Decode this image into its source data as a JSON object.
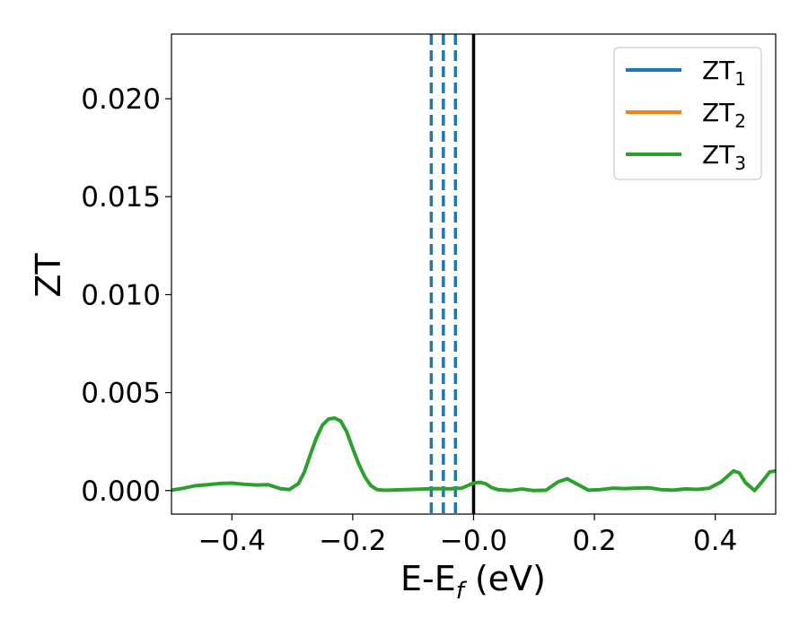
{
  "chart_data": {
    "type": "line",
    "title": "",
    "xlabel": "E-E",
    "xlabel_subscript": "f",
    "xlabel_unit": " (eV)",
    "ylabel": "ZT",
    "xlim": [
      -0.5,
      0.5
    ],
    "ylim": [
      -0.0012,
      0.0233
    ],
    "xticks": [
      -0.4,
      -0.2,
      0.0,
      0.2,
      0.4
    ],
    "xtick_labels": [
      "−0.4",
      "−0.2",
      "−0.0",
      "0.2",
      "0.4"
    ],
    "yticks": [
      0.0,
      0.005,
      0.01,
      0.015,
      0.02
    ],
    "ytick_labels": [
      "0.000",
      "0.005",
      "0.010",
      "0.015",
      "0.020"
    ],
    "grid": false,
    "legend_position": "top-right",
    "legend": [
      {
        "base": "ZT",
        "sub": "1",
        "color": "#1f77b4"
      },
      {
        "base": "ZT",
        "sub": "2",
        "color": "#ff7f0e"
      },
      {
        "base": "ZT",
        "sub": "3",
        "color": "#2ca02c"
      }
    ],
    "series": [
      {
        "color": "#2ca02c",
        "x": [
          -0.5,
          -0.48,
          -0.46,
          -0.44,
          -0.42,
          -0.4,
          -0.38,
          -0.36,
          -0.34,
          -0.32,
          -0.305,
          -0.29,
          -0.28,
          -0.27,
          -0.26,
          -0.25,
          -0.24,
          -0.23,
          -0.22,
          -0.21,
          -0.2,
          -0.19,
          -0.18,
          -0.17,
          -0.16,
          -0.15,
          -0.14,
          -0.12,
          -0.1,
          -0.08,
          -0.06,
          -0.04,
          -0.02,
          -0.01,
          0.0,
          0.01,
          0.02,
          0.03,
          0.04,
          0.06,
          0.08,
          0.1,
          0.12,
          0.14,
          0.155,
          0.17,
          0.19,
          0.21,
          0.23,
          0.25,
          0.27,
          0.29,
          0.31,
          0.33,
          0.35,
          0.37,
          0.39,
          0.41,
          0.43,
          0.44,
          0.45,
          0.465,
          0.48,
          0.49,
          0.5
        ],
        "y": [
          2e-05,
          0.00012,
          0.00025,
          0.0003,
          0.00036,
          0.00038,
          0.00032,
          0.00028,
          0.0003,
          0.0001,
          5e-05,
          0.00035,
          0.00095,
          0.00185,
          0.0027,
          0.00335,
          0.00365,
          0.0037,
          0.00355,
          0.003,
          0.00215,
          0.00135,
          0.0007,
          0.00025,
          5e-05,
          2e-05,
          2e-05,
          4e-05,
          6e-05,
          8e-05,
          0.0001,
          9e-05,
          0.00012,
          0.00025,
          0.00038,
          0.00042,
          0.00035,
          0.00015,
          5e-05,
          0.0,
          8e-05,
          0.0,
          2e-05,
          0.00045,
          0.0006,
          0.00035,
          2e-05,
          5e-05,
          0.00012,
          0.0001,
          0.00012,
          0.00014,
          5e-05,
          2e-05,
          8e-05,
          6e-05,
          0.00012,
          0.00045,
          0.001,
          0.0009,
          0.0004,
          0.0,
          0.00055,
          0.00095,
          0.001
        ]
      }
    ],
    "reference_lines": [
      {
        "x": 0.0,
        "style": "solid",
        "color": "#000000"
      },
      {
        "x": -0.07,
        "style": "dashed",
        "color": "#1f77b4"
      },
      {
        "x": -0.05,
        "style": "dashed",
        "color": "#1f77b4"
      },
      {
        "x": -0.03,
        "style": "dashed",
        "color": "#1f77b4"
      }
    ]
  }
}
